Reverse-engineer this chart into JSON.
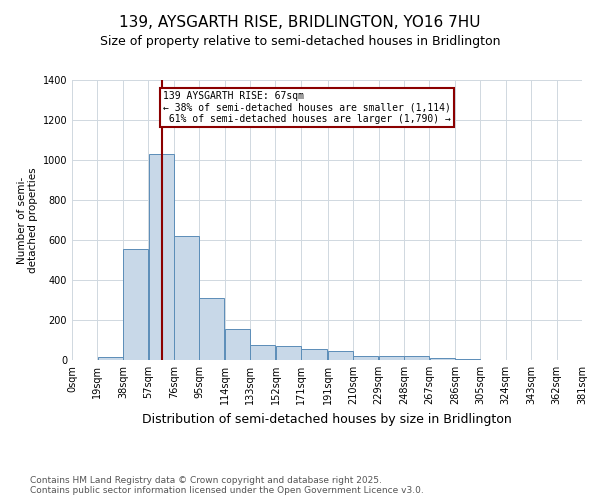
{
  "title": "139, AYSGARTH RISE, BRIDLINGTON, YO16 7HU",
  "subtitle": "Size of property relative to semi-detached houses in Bridlington",
  "xlabel": "Distribution of semi-detached houses by size in Bridlington",
  "ylabel": "Number of semi-\ndetached properties",
  "property_size": 67,
  "property_name": "139 AYSGARTH RISE: 67sqm",
  "pct_smaller": 38,
  "count_smaller": 1114,
  "pct_larger": 61,
  "count_larger": 1790,
  "bar_values": [
    0,
    15,
    555,
    1030,
    620,
    310,
    155,
    75,
    70,
    55,
    45,
    20,
    20,
    20,
    10,
    5,
    0,
    0,
    0,
    0
  ],
  "bin_edges": [
    0,
    19,
    38,
    57,
    76,
    95,
    114,
    133,
    152,
    171,
    191,
    210,
    229,
    248,
    267,
    286,
    305,
    324,
    343,
    362,
    381
  ],
  "bin_labels": [
    "0sqm",
    "19sqm",
    "38sqm",
    "57sqm",
    "76sqm",
    "95sqm",
    "114sqm",
    "133sqm",
    "152sqm",
    "171sqm",
    "191sqm",
    "210sqm",
    "229sqm",
    "248sqm",
    "267sqm",
    "286sqm",
    "305sqm",
    "324sqm",
    "343sqm",
    "362sqm",
    "381sqm"
  ],
  "bar_color": "#c8d8e8",
  "bar_edge_color": "#5b8db8",
  "vline_color": "#8b0000",
  "annotation_box_color": "#8b0000",
  "grid_color": "#d0d8e0",
  "ylim": [
    0,
    1400
  ],
  "yticks": [
    0,
    200,
    400,
    600,
    800,
    1000,
    1200,
    1400
  ],
  "footer": "Contains HM Land Registry data © Crown copyright and database right 2025.\nContains public sector information licensed under the Open Government Licence v3.0.",
  "title_fontsize": 11,
  "subtitle_fontsize": 9,
  "xlabel_fontsize": 9,
  "ylabel_fontsize": 7.5,
  "tick_fontsize": 7,
  "footer_fontsize": 6.5
}
